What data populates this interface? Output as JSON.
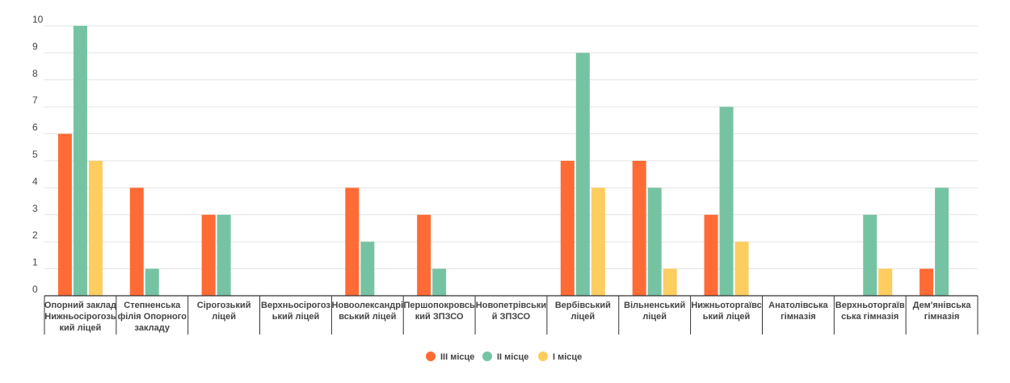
{
  "chart_data": {
    "type": "bar",
    "ylim": [
      0,
      10
    ],
    "yticks": [
      "0",
      "1",
      "2",
      "3",
      "4",
      "5",
      "6",
      "7",
      "8",
      "9",
      "10"
    ],
    "grid": true,
    "legend_position": "bottom",
    "categories": [
      [
        "Опорний заклад",
        "Нижньосірогозь",
        "кий ліцей"
      ],
      [
        "Степненська",
        "філія Опорного",
        "закладу"
      ],
      [
        "Сірогозький",
        "ліцей"
      ],
      [
        "Верхньосірогоз",
        "ький ліцей"
      ],
      [
        "Новоолександрі",
        "вський ліцей"
      ],
      [
        "Першопокровсь",
        "кий ЗПЗСО"
      ],
      [
        "Новопетрівськи",
        "й ЗПЗСО"
      ],
      [
        "Вербівський",
        "ліцей"
      ],
      [
        "Вільненський",
        "ліцей"
      ],
      [
        "Нижньоторгаївс",
        "ький ліцей"
      ],
      [
        "Анатолівська",
        "гімназія"
      ],
      [
        "Верхньоторгаїв",
        "ська гімназія"
      ],
      [
        "Дем'янівська",
        "гімназія"
      ]
    ],
    "series": [
      {
        "name": "ІІІ місце",
        "color": "#ff6b35",
        "values": [
          6,
          4,
          3,
          0,
          4,
          3,
          0,
          5,
          5,
          3,
          0,
          0,
          1
        ]
      },
      {
        "name": "ІІ місце",
        "color": "#76c3a4",
        "values": [
          10,
          1,
          3,
          0,
          2,
          1,
          0,
          9,
          4,
          7,
          0,
          3,
          4
        ]
      },
      {
        "name": "І місце",
        "color": "#fdcd60",
        "values": [
          5,
          0,
          0,
          0,
          0,
          0,
          0,
          4,
          1,
          2,
          0,
          1,
          0
        ]
      }
    ]
  }
}
